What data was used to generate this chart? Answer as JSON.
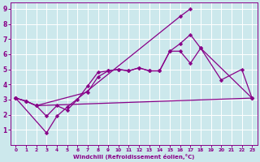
{
  "bg_color": "#cce8ec",
  "line_color": "#880088",
  "grid_color": "#ffffff",
  "xlabel": "Windchill (Refroidissement éolien,°C)",
  "xlabel_color": "#880088",
  "xlim": [
    -0.5,
    23.5
  ],
  "ylim": [
    0,
    9.4
  ],
  "xticks": [
    0,
    1,
    2,
    3,
    4,
    5,
    6,
    7,
    8,
    9,
    10,
    11,
    12,
    13,
    14,
    15,
    16,
    17,
    18,
    19,
    20,
    21,
    22,
    23
  ],
  "yticks": [
    1,
    2,
    3,
    4,
    5,
    6,
    7,
    8,
    9
  ],
  "figsize": [
    3.2,
    2.0
  ],
  "dpi": 100,
  "series": [
    {
      "points": [
        [
          0,
          3.1
        ],
        [
          1,
          2.9
        ],
        [
          2,
          2.6
        ],
        [
          3,
          1.9
        ],
        [
          4,
          2.6
        ],
        [
          5,
          2.3
        ],
        [
          6,
          3.0
        ],
        [
          7,
          3.9
        ],
        [
          8,
          4.8
        ],
        [
          9,
          4.9
        ],
        [
          10,
          5.0
        ],
        [
          11,
          4.9
        ],
        [
          12,
          5.1
        ],
        [
          13,
          4.9
        ],
        [
          14,
          4.9
        ],
        [
          15,
          6.2
        ],
        [
          16,
          6.2
        ],
        [
          17,
          5.4
        ],
        [
          18,
          6.4
        ],
        [
          20,
          4.3
        ],
        [
          22,
          5.0
        ],
        [
          23,
          3.1
        ]
      ]
    },
    {
      "points": [
        [
          0,
          3.1
        ],
        [
          1,
          2.9
        ],
        [
          2,
          2.6
        ],
        [
          7,
          3.5
        ],
        [
          8,
          4.5
        ],
        [
          9,
          4.9
        ],
        [
          10,
          5.0
        ],
        [
          11,
          4.9
        ],
        [
          12,
          5.1
        ],
        [
          13,
          4.9
        ],
        [
          14,
          4.9
        ],
        [
          15,
          6.2
        ],
        [
          16,
          6.7
        ],
        [
          17,
          7.3
        ],
        [
          18,
          6.4
        ],
        [
          23,
          3.1
        ]
      ]
    },
    {
      "points": [
        [
          0,
          3.1
        ],
        [
          1,
          2.9
        ],
        [
          2,
          2.6
        ],
        [
          23,
          3.1
        ]
      ]
    },
    {
      "points": [
        [
          0,
          3.1
        ],
        [
          3,
          0.8
        ],
        [
          4,
          1.9
        ],
        [
          5,
          2.5
        ],
        [
          16,
          8.5
        ],
        [
          17,
          9.0
        ]
      ]
    }
  ],
  "lw": 0.9,
  "markersize": 2.5
}
